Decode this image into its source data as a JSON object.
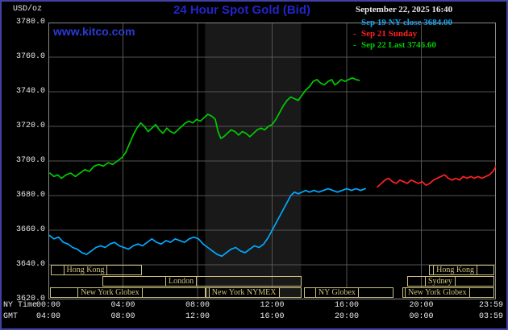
{
  "header": {
    "units": "USD/oz",
    "title": "24 Hour Spot Gold (Bid)",
    "datetime": "September 22, 2025 16:40",
    "watermark": "www.kitco.com"
  },
  "axes": {
    "ny_time_label": "NY Time",
    "gmt_label": "GMT"
  },
  "colors": {
    "bg": "#000000",
    "border": "#4141a6",
    "title": "#2323cc",
    "watermark": "#2a3ad8",
    "text": "#e8e8e8",
    "date": "#e8e8e8",
    "grid": "#555555",
    "frame": "#8a8a8a",
    "band": "#191919",
    "session": "#cdc07c"
  },
  "chart_data": {
    "type": "line",
    "title": "24 Hour Spot Gold (Bid)",
    "ylabel": "USD/oz",
    "ylim": [
      3620,
      3780
    ],
    "xlim": [
      0,
      24
    ],
    "grid": true,
    "legend_position": "top-right",
    "y_ticks": [
      "3780.0",
      "3760.0",
      "3740.0",
      "3720.0",
      "3700.0",
      "3680.0",
      "3660.0",
      "3640.0",
      "3620.0"
    ],
    "x_tick_hours": [
      0,
      4,
      8,
      12,
      16,
      20,
      24
    ],
    "x_ticks_ny": [
      "00:00",
      "04:00",
      "08:00",
      "12:00",
      "16:00",
      "20:00",
      "23:59"
    ],
    "x_ticks_gmt": [
      "04:00",
      "08:00",
      "12:00",
      "16:00",
      "20:00",
      "00:00",
      "03:59"
    ],
    "band_hours": [
      8.4,
      13.55
    ],
    "series": [
      {
        "id": "sep19",
        "name": "Sep 19 NY close 3684.00",
        "color": "#00aaff",
        "points": [
          [
            0.05,
            3657
          ],
          [
            0.3,
            3655
          ],
          [
            0.55,
            3656
          ],
          [
            0.8,
            3653
          ],
          [
            1.05,
            3652
          ],
          [
            1.3,
            3650
          ],
          [
            1.55,
            3649
          ],
          [
            1.8,
            3647
          ],
          [
            2.05,
            3646
          ],
          [
            2.3,
            3648
          ],
          [
            2.55,
            3650
          ],
          [
            2.8,
            3651
          ],
          [
            3.05,
            3650
          ],
          [
            3.3,
            3652
          ],
          [
            3.55,
            3653
          ],
          [
            3.8,
            3651
          ],
          [
            4.05,
            3650
          ],
          [
            4.3,
            3649
          ],
          [
            4.55,
            3651
          ],
          [
            4.8,
            3652
          ],
          [
            5.05,
            3651
          ],
          [
            5.3,
            3653
          ],
          [
            5.55,
            3655
          ],
          [
            5.8,
            3653
          ],
          [
            6.05,
            3652
          ],
          [
            6.3,
            3654
          ],
          [
            6.55,
            3653
          ],
          [
            6.8,
            3655
          ],
          [
            7.05,
            3654
          ],
          [
            7.3,
            3653
          ],
          [
            7.55,
            3655
          ],
          [
            7.8,
            3656
          ],
          [
            8.05,
            3655
          ],
          [
            8.3,
            3652
          ],
          [
            8.55,
            3650
          ],
          [
            8.8,
            3648
          ],
          [
            9.05,
            3646
          ],
          [
            9.3,
            3645
          ],
          [
            9.55,
            3647
          ],
          [
            9.8,
            3649
          ],
          [
            10.05,
            3650
          ],
          [
            10.3,
            3648
          ],
          [
            10.55,
            3647
          ],
          [
            10.8,
            3649
          ],
          [
            11.05,
            3651
          ],
          [
            11.3,
            3650
          ],
          [
            11.55,
            3652
          ],
          [
            11.8,
            3656
          ],
          [
            12.05,
            3661
          ],
          [
            12.3,
            3666
          ],
          [
            12.55,
            3671
          ],
          [
            12.8,
            3676
          ],
          [
            13.0,
            3680
          ],
          [
            13.2,
            3682
          ],
          [
            13.4,
            3681
          ],
          [
            13.6,
            3682
          ],
          [
            13.8,
            3683
          ],
          [
            14.0,
            3682
          ],
          [
            14.25,
            3683
          ],
          [
            14.5,
            3682
          ],
          [
            14.75,
            3683
          ],
          [
            15.0,
            3684
          ],
          [
            15.25,
            3683
          ],
          [
            15.5,
            3682
          ],
          [
            15.75,
            3683
          ],
          [
            16.0,
            3684
          ],
          [
            16.25,
            3683
          ],
          [
            16.5,
            3684
          ],
          [
            16.75,
            3683
          ],
          [
            17.0,
            3684
          ]
        ]
      },
      {
        "id": "sep21",
        "name": "Sep 21 Sunday",
        "color": "#ff2222",
        "points": [
          [
            17.65,
            3685
          ],
          [
            17.85,
            3687
          ],
          [
            18.05,
            3689
          ],
          [
            18.25,
            3690
          ],
          [
            18.45,
            3688
          ],
          [
            18.65,
            3687
          ],
          [
            18.85,
            3689
          ],
          [
            19.05,
            3688
          ],
          [
            19.25,
            3687
          ],
          [
            19.45,
            3689
          ],
          [
            19.65,
            3688
          ],
          [
            19.85,
            3687
          ],
          [
            20.05,
            3688
          ],
          [
            20.25,
            3686
          ],
          [
            20.45,
            3687
          ],
          [
            20.65,
            3689
          ],
          [
            20.85,
            3690
          ],
          [
            21.05,
            3691
          ],
          [
            21.25,
            3692
          ],
          [
            21.45,
            3690
          ],
          [
            21.65,
            3689
          ],
          [
            21.85,
            3690
          ],
          [
            22.05,
            3689
          ],
          [
            22.25,
            3691
          ],
          [
            22.45,
            3690
          ],
          [
            22.65,
            3691
          ],
          [
            22.85,
            3690
          ],
          [
            23.05,
            3691
          ],
          [
            23.25,
            3690
          ],
          [
            23.45,
            3691
          ],
          [
            23.65,
            3692
          ],
          [
            23.85,
            3694
          ],
          [
            24.0,
            3697
          ]
        ]
      },
      {
        "id": "sep22",
        "name": "Sep 22 Last 3746.60",
        "color": "#00cc00",
        "points": [
          [
            0.08,
            3693
          ],
          [
            0.3,
            3691
          ],
          [
            0.5,
            3692
          ],
          [
            0.7,
            3690
          ],
          [
            0.95,
            3692
          ],
          [
            1.2,
            3693
          ],
          [
            1.45,
            3691
          ],
          [
            1.7,
            3693
          ],
          [
            1.95,
            3695
          ],
          [
            2.2,
            3694
          ],
          [
            2.45,
            3697
          ],
          [
            2.7,
            3698
          ],
          [
            2.95,
            3697
          ],
          [
            3.2,
            3699
          ],
          [
            3.45,
            3698
          ],
          [
            3.7,
            3700
          ],
          [
            3.95,
            3702
          ],
          [
            4.15,
            3705
          ],
          [
            4.35,
            3710
          ],
          [
            4.55,
            3715
          ],
          [
            4.75,
            3719
          ],
          [
            4.95,
            3722
          ],
          [
            5.15,
            3720
          ],
          [
            5.35,
            3717
          ],
          [
            5.55,
            3719
          ],
          [
            5.75,
            3721
          ],
          [
            5.95,
            3718
          ],
          [
            6.15,
            3716
          ],
          [
            6.35,
            3719
          ],
          [
            6.55,
            3717
          ],
          [
            6.75,
            3716
          ],
          [
            6.95,
            3718
          ],
          [
            7.15,
            3720
          ],
          [
            7.35,
            3722
          ],
          [
            7.55,
            3723
          ],
          [
            7.75,
            3722
          ],
          [
            7.95,
            3724
          ],
          [
            8.15,
            3723
          ],
          [
            8.35,
            3725
          ],
          [
            8.55,
            3727
          ],
          [
            8.75,
            3726
          ],
          [
            8.95,
            3724
          ],
          [
            9.1,
            3717
          ],
          [
            9.25,
            3713
          ],
          [
            9.4,
            3714
          ],
          [
            9.6,
            3716
          ],
          [
            9.8,
            3718
          ],
          [
            10.0,
            3717
          ],
          [
            10.2,
            3715
          ],
          [
            10.4,
            3717
          ],
          [
            10.6,
            3716
          ],
          [
            10.8,
            3714
          ],
          [
            11.0,
            3716
          ],
          [
            11.2,
            3718
          ],
          [
            11.4,
            3719
          ],
          [
            11.6,
            3718
          ],
          [
            11.8,
            3720
          ],
          [
            12.0,
            3721
          ],
          [
            12.2,
            3724
          ],
          [
            12.4,
            3728
          ],
          [
            12.6,
            3732
          ],
          [
            12.8,
            3735
          ],
          [
            13.0,
            3737
          ],
          [
            13.2,
            3736
          ],
          [
            13.4,
            3735
          ],
          [
            13.6,
            3738
          ],
          [
            13.8,
            3741
          ],
          [
            14.0,
            3743
          ],
          [
            14.2,
            3746
          ],
          [
            14.4,
            3747
          ],
          [
            14.6,
            3745
          ],
          [
            14.8,
            3744
          ],
          [
            15.0,
            3746
          ],
          [
            15.2,
            3747
          ],
          [
            15.35,
            3744
          ],
          [
            15.5,
            3745
          ],
          [
            15.7,
            3747
          ],
          [
            15.9,
            3746
          ],
          [
            16.1,
            3747
          ],
          [
            16.3,
            3748
          ],
          [
            16.5,
            3747
          ],
          [
            16.67,
            3746.6
          ]
        ]
      }
    ],
    "sessions": [
      {
        "row": 0,
        "label": "Hong Kong",
        "start": 0.13,
        "end": 5.0,
        "label_at": 0.8
      },
      {
        "row": 0,
        "label": "Hong Kong",
        "start": 20.4,
        "end": 23.91,
        "label_at": 20.63
      },
      {
        "row": 1,
        "label": "London",
        "start": 2.9,
        "end": 13.58,
        "label_at": 6.27
      },
      {
        "row": 1,
        "label": "Sydney",
        "start": 19.24,
        "end": 23.91,
        "label_at": 20.19
      },
      {
        "row": 2,
        "label": "New York Globex",
        "start": 0.09,
        "end": 8.43,
        "label_at": 1.56
      },
      {
        "row": 2,
        "label": "New York NYMEX",
        "start": 8.43,
        "end": 13.58,
        "label_at": 8.6
      },
      {
        "row": 2,
        "label": "NY Globex",
        "start": 13.71,
        "end": 18.51,
        "label_at": 14.31
      },
      {
        "row": 2,
        "label": "New York Globex",
        "start": 18.99,
        "end": 23.91,
        "label_at": 19.12
      }
    ]
  }
}
